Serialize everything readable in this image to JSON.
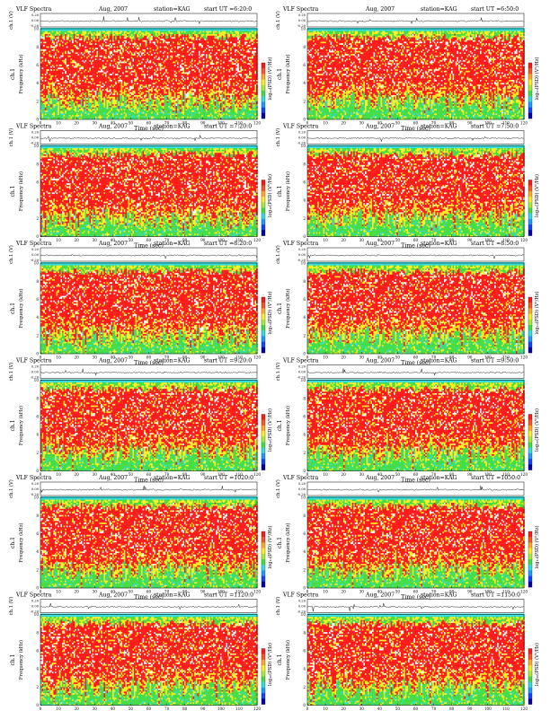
{
  "page": {
    "panel_title": "VLF Spectra",
    "panel_date": "Aug, 2007",
    "panel_station": "station=KAG",
    "ut_prefix": "start  UT =",
    "ch_label": "ch.1 (V)",
    "freq_label": "Frequency  (kHz)",
    "ch1_tag": "ch.1",
    "time_label": "Time  (sec)",
    "colorbar_label": "log₁₀(PSD) (V²/Hz)"
  },
  "colors": {
    "red": "#ff1a1a",
    "yellow": "#ffee22",
    "green": "#44dd44",
    "cyan": "#33dddd",
    "white": "#ffffff",
    "trace": "#000000"
  },
  "chart_data": [
    {
      "type": "heatmap",
      "start_ut": "6:20:0",
      "x_ticks": [
        "0",
        "10",
        "20",
        "30",
        "40",
        "50",
        "60",
        "70",
        "80",
        "90",
        "100",
        "110",
        "120"
      ],
      "y_ticks": [
        "0",
        "2",
        "4",
        "6",
        "8",
        "10"
      ],
      "ch_ticks": [
        "0.20",
        "0.00",
        "-0.20"
      ],
      "xlim": [
        0,
        120
      ],
      "ylim": [
        0,
        10
      ],
      "colorbar_ticks": [
        "-",
        "-"
      ]
    },
    {
      "type": "heatmap",
      "start_ut": "6:50:0",
      "x_ticks": [
        "0",
        "10",
        "20",
        "30",
        "40",
        "50",
        "60",
        "70",
        "80",
        "90",
        "100",
        "110",
        "120"
      ],
      "y_ticks": [
        "0",
        "2",
        "4",
        "6",
        "8",
        "10"
      ],
      "ch_ticks": [
        "0.20",
        "0.00",
        "-0.20"
      ],
      "xlim": [
        0,
        120
      ],
      "ylim": [
        0,
        10
      ],
      "colorbar_ticks": [
        "-",
        "-"
      ]
    },
    {
      "type": "heatmap",
      "start_ut": "7:20:0",
      "x_ticks": [
        "0",
        "10",
        "20",
        "30",
        "40",
        "50",
        "60",
        "70",
        "80",
        "90",
        "100",
        "110",
        "120"
      ],
      "y_ticks": [
        "0",
        "2",
        "4",
        "6",
        "8",
        "10"
      ],
      "ch_ticks": [
        "0.20",
        "0.00",
        "-0.20"
      ],
      "xlim": [
        0,
        120
      ],
      "ylim": [
        0,
        10
      ],
      "colorbar_ticks": [
        "-",
        "-"
      ]
    },
    {
      "type": "heatmap",
      "start_ut": "7:50:0",
      "x_ticks": [
        "0",
        "10",
        "20",
        "30",
        "40",
        "50",
        "60",
        "70",
        "80",
        "90",
        "100",
        "110",
        "120"
      ],
      "y_ticks": [
        "0",
        "2",
        "4",
        "6",
        "8",
        "10"
      ],
      "ch_ticks": [
        "0.20",
        "0.00",
        "-0.20"
      ],
      "xlim": [
        0,
        120
      ],
      "ylim": [
        0,
        10
      ],
      "colorbar_ticks": [
        "-",
        "-"
      ]
    },
    {
      "type": "heatmap",
      "start_ut": "8:20:0",
      "x_ticks": [
        "0",
        "10",
        "20",
        "30",
        "40",
        "50",
        "60",
        "70",
        "80",
        "90",
        "100",
        "110",
        "120"
      ],
      "y_ticks": [
        "0",
        "2",
        "4",
        "6",
        "8",
        "10"
      ],
      "ch_ticks": [
        "0.20",
        "0.00",
        "-0.20"
      ],
      "xlim": [
        0,
        120
      ],
      "ylim": [
        0,
        10
      ],
      "colorbar_ticks": [
        "-",
        "-"
      ]
    },
    {
      "type": "heatmap",
      "start_ut": "8:50:0",
      "x_ticks": [
        "0",
        "10",
        "20",
        "30",
        "40",
        "50",
        "60",
        "70",
        "80",
        "90",
        "100",
        "110",
        "120"
      ],
      "y_ticks": [
        "0",
        "2",
        "4",
        "6",
        "8",
        "10"
      ],
      "ch_ticks": [
        "0.20",
        "0.00",
        "-0.20"
      ],
      "xlim": [
        0,
        120
      ],
      "ylim": [
        0,
        10
      ],
      "colorbar_ticks": [
        "-",
        "-"
      ]
    },
    {
      "type": "heatmap",
      "start_ut": "9:20:0",
      "x_ticks": [
        "0",
        "10",
        "20",
        "30",
        "40",
        "50",
        "60",
        "70",
        "80",
        "90",
        "100",
        "110",
        "120"
      ],
      "y_ticks": [
        "0",
        "2",
        "4",
        "6",
        "8",
        "10"
      ],
      "ch_ticks": [
        "0.20",
        "0.00",
        "-0.20"
      ],
      "xlim": [
        0,
        120
      ],
      "ylim": [
        0,
        10
      ],
      "colorbar_ticks": [
        "-",
        "-"
      ]
    },
    {
      "type": "heatmap",
      "start_ut": "9:50:0",
      "x_ticks": [
        "0",
        "10",
        "20",
        "30",
        "40",
        "50",
        "60",
        "70",
        "80",
        "90",
        "100",
        "110",
        "120"
      ],
      "y_ticks": [
        "0",
        "2",
        "4",
        "6",
        "8",
        "10"
      ],
      "ch_ticks": [
        "0.20",
        "0.00",
        "-0.20"
      ],
      "xlim": [
        0,
        120
      ],
      "ylim": [
        0,
        10
      ],
      "colorbar_ticks": [
        "-",
        "-"
      ]
    },
    {
      "type": "heatmap",
      "start_ut": "1020:0",
      "x_ticks": [
        "0",
        "10",
        "20",
        "30",
        "40",
        "50",
        "60",
        "70",
        "80",
        "90",
        "100",
        "110",
        "120"
      ],
      "y_ticks": [
        "0",
        "2",
        "4",
        "6",
        "8",
        "10"
      ],
      "ch_ticks": [
        "0.20",
        "0.00",
        "-0.20"
      ],
      "xlim": [
        0,
        120
      ],
      "ylim": [
        0,
        10
      ],
      "colorbar_ticks": [
        "-",
        "-"
      ]
    },
    {
      "type": "heatmap",
      "start_ut": "1050:0",
      "x_ticks": [
        "0",
        "10",
        "20",
        "30",
        "40",
        "50",
        "60",
        "70",
        "80",
        "90",
        "100",
        "110",
        "120"
      ],
      "y_ticks": [
        "0",
        "2",
        "4",
        "6",
        "8",
        "10"
      ],
      "ch_ticks": [
        "0.20",
        "0.00",
        "-0.20"
      ],
      "xlim": [
        0,
        120
      ],
      "ylim": [
        0,
        10
      ],
      "colorbar_ticks": [
        "-",
        "-"
      ]
    },
    {
      "type": "heatmap",
      "start_ut": "1120:0",
      "x_ticks": [
        "0",
        "10",
        "20",
        "30",
        "40",
        "50",
        "60",
        "70",
        "80",
        "90",
        "100",
        "110",
        "120"
      ],
      "y_ticks": [
        "0",
        "2",
        "4",
        "6",
        "8",
        "10"
      ],
      "ch_ticks": [
        "0.20",
        "0.00",
        "-0.20"
      ],
      "xlim": [
        0,
        120
      ],
      "ylim": [
        0,
        10
      ],
      "colorbar_ticks": [
        "-",
        "-"
      ]
    },
    {
      "type": "heatmap",
      "start_ut": "1150:0",
      "x_ticks": [
        "0",
        "10",
        "20",
        "30",
        "40",
        "50",
        "60",
        "70",
        "80",
        "90",
        "100",
        "110",
        "120"
      ],
      "y_ticks": [
        "0",
        "2",
        "4",
        "6",
        "8",
        "10"
      ],
      "ch_ticks": [
        "0.20",
        "0.00",
        "-0.20"
      ],
      "xlim": [
        0,
        120
      ],
      "ylim": [
        0,
        10
      ],
      "colorbar_ticks": [
        "-",
        "-"
      ]
    }
  ]
}
